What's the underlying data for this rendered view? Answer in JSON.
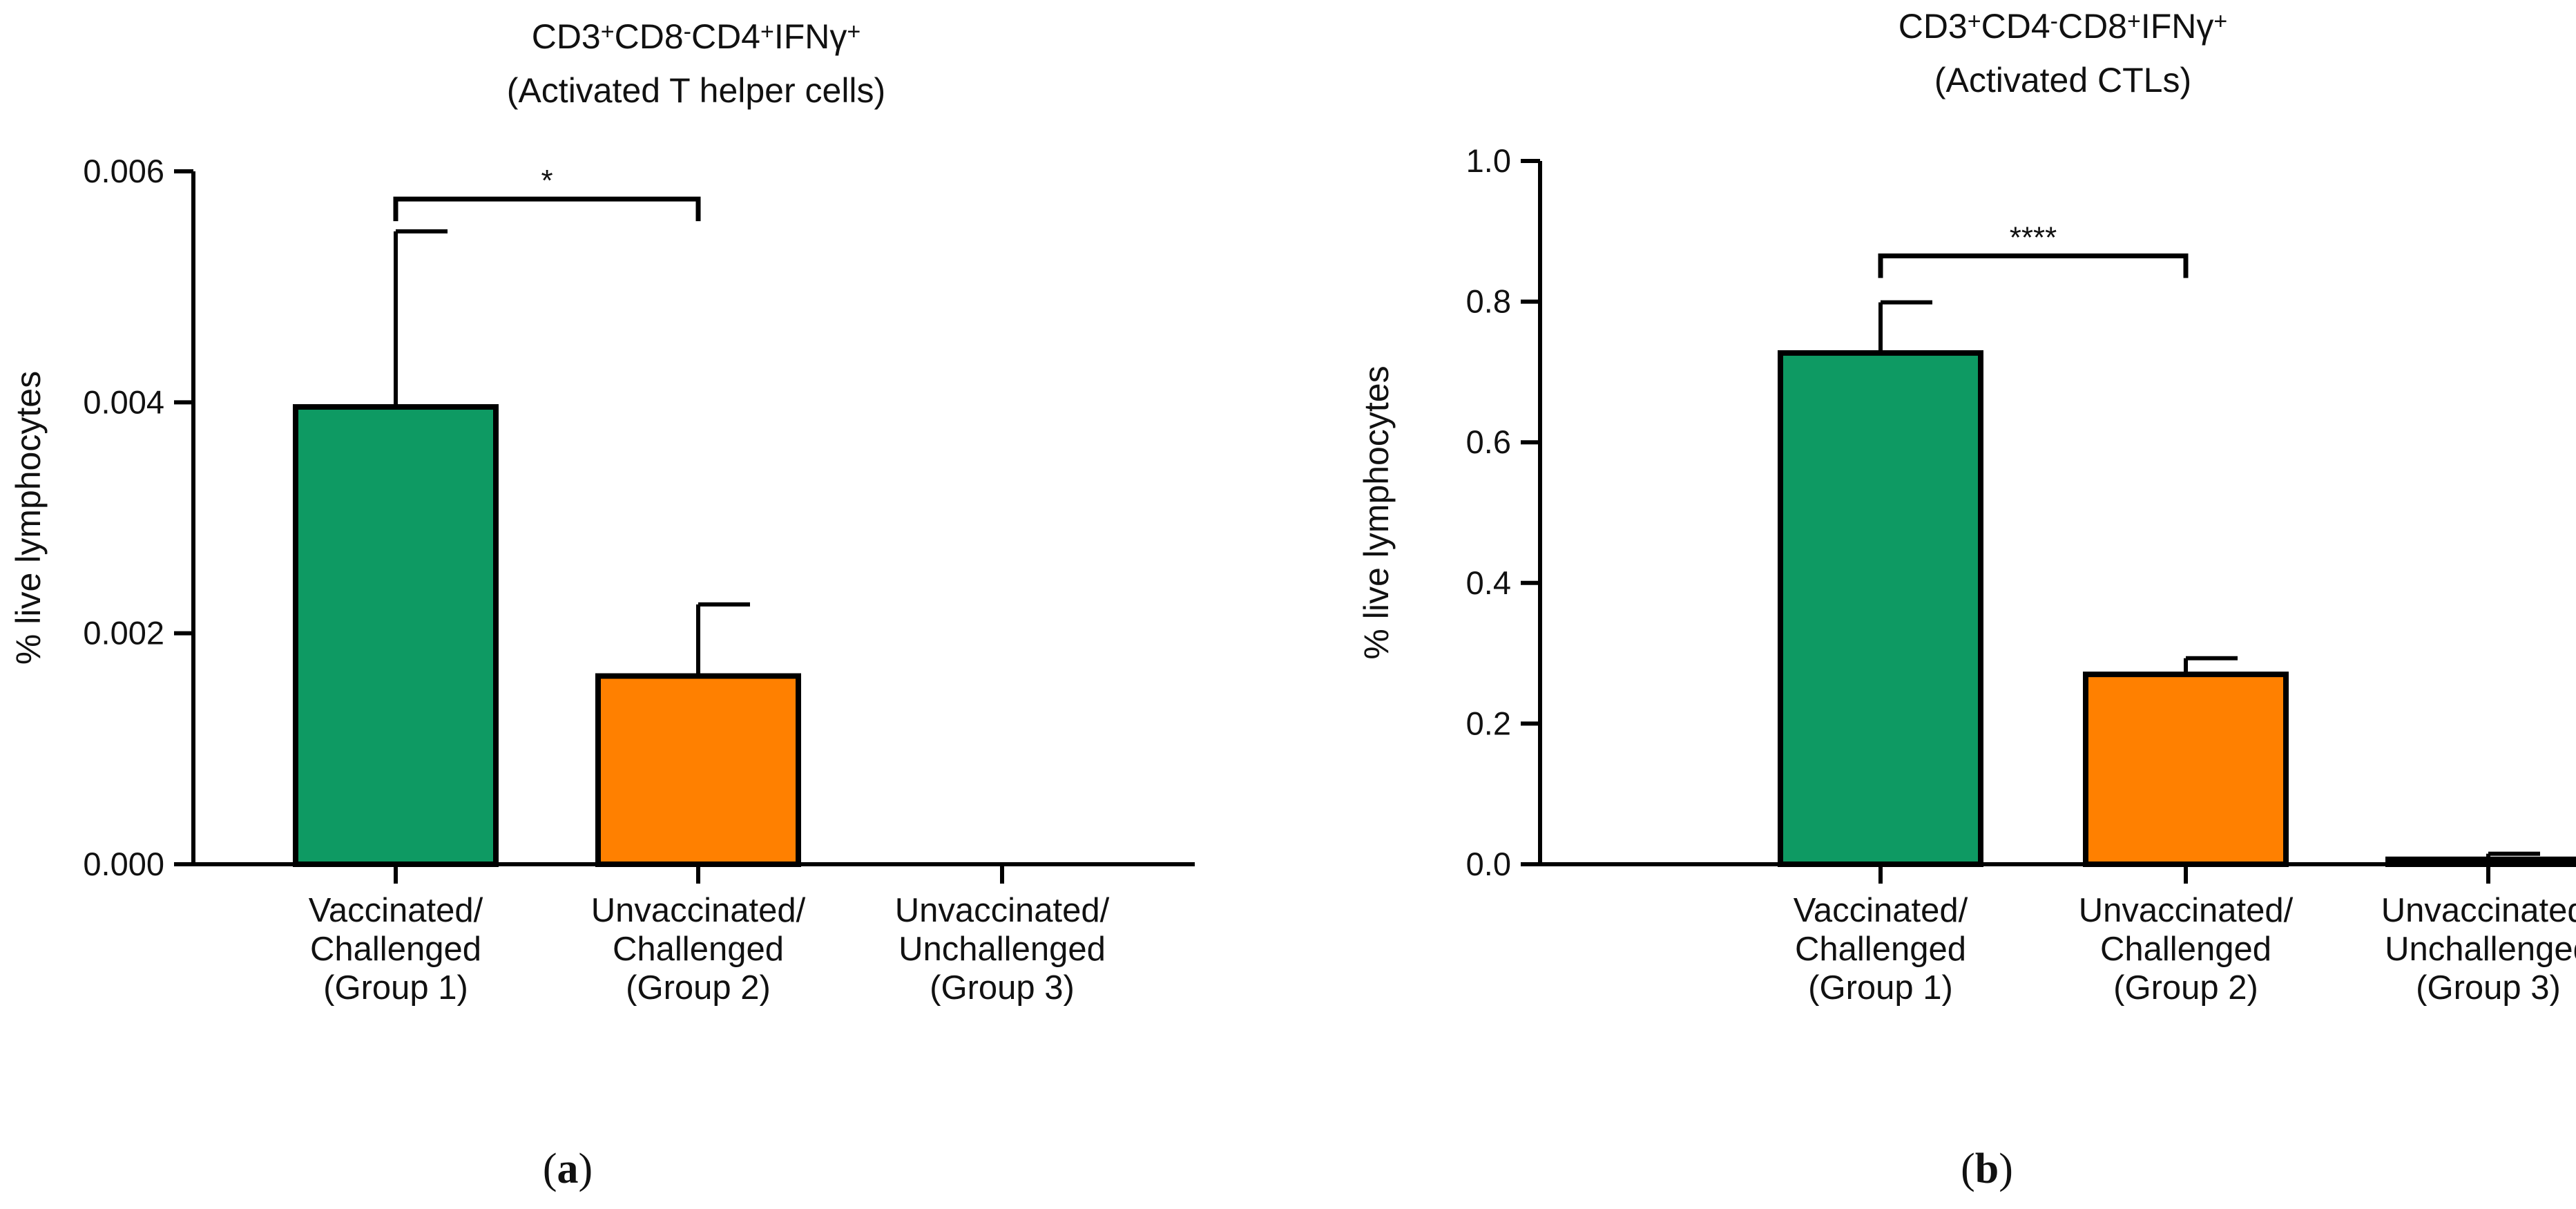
{
  "chart_data": [
    {
      "type": "bar",
      "title_lines": [
        [
          {
            "t": "CD3"
          },
          {
            "t": "+",
            "sup": true
          },
          {
            "t": "CD8"
          },
          {
            "t": "-",
            "sup": true
          },
          {
            "t": "CD4"
          },
          {
            "t": "+",
            "sup": true
          },
          {
            "t": "IFNγ"
          },
          {
            "t": "+",
            "sup": true
          }
        ],
        [
          {
            "t": "(Activated  T helper cells)"
          }
        ]
      ],
      "ylabel": "% live lymphocytes",
      "ylim": [
        0,
        0.006
      ],
      "yticks": [
        "0.000",
        "0.002",
        "0.004",
        "0.006"
      ],
      "categories": [
        [
          "Vaccinated/",
          "Challenged",
          "(Group 1)"
        ],
        [
          "Unvaccinated/",
          "Challenged",
          "(Group 2)"
        ],
        [
          "Unvaccinated/",
          "Unchallenged",
          "(Group 3)"
        ]
      ],
      "values": [
        0.00396,
        0.00163,
        0
      ],
      "errors": [
        0.00152,
        0.00062,
        0
      ],
      "colors": [
        "#0e9a63",
        "#ff8000",
        "#ffffff"
      ],
      "significance": {
        "from": 0,
        "to": 1,
        "label": "*",
        "y": 0.00576
      },
      "subfigure_label": "(a)"
    },
    {
      "type": "bar",
      "title_lines": [
        [
          {
            "t": "CD3"
          },
          {
            "t": "+",
            "sup": true
          },
          {
            "t": "CD4"
          },
          {
            "t": "-",
            "sup": true
          },
          {
            "t": "CD8"
          },
          {
            "t": "+",
            "sup": true
          },
          {
            "t": "IFNγ"
          },
          {
            "t": "+",
            "sup": true
          }
        ],
        [
          {
            "t": "(Activated CTLs)"
          }
        ]
      ],
      "ylabel": "% live lymphocytes",
      "ylim": [
        0,
        1.0
      ],
      "yticks": [
        "0.0",
        "0.2",
        "0.4",
        "0.6",
        "0.8",
        "1.0"
      ],
      "categories": [
        [
          "Vaccinated/",
          "Challenged",
          "(Group 1)"
        ],
        [
          "Unvaccinated/",
          "Challenged",
          "(Group 2)"
        ],
        [
          "Unvaccinated/",
          "Unchallenged",
          "(Group 3)"
        ]
      ],
      "values": [
        0.727,
        0.27,
        0.007
      ],
      "errors": [
        0.072,
        0.023,
        0.008
      ],
      "colors": [
        "#0e9a63",
        "#ff8000",
        "#ffffff"
      ],
      "significance": {
        "from": 0,
        "to": 1,
        "label": "****",
        "y": 0.865
      },
      "subfigure_label": "(b)"
    }
  ]
}
